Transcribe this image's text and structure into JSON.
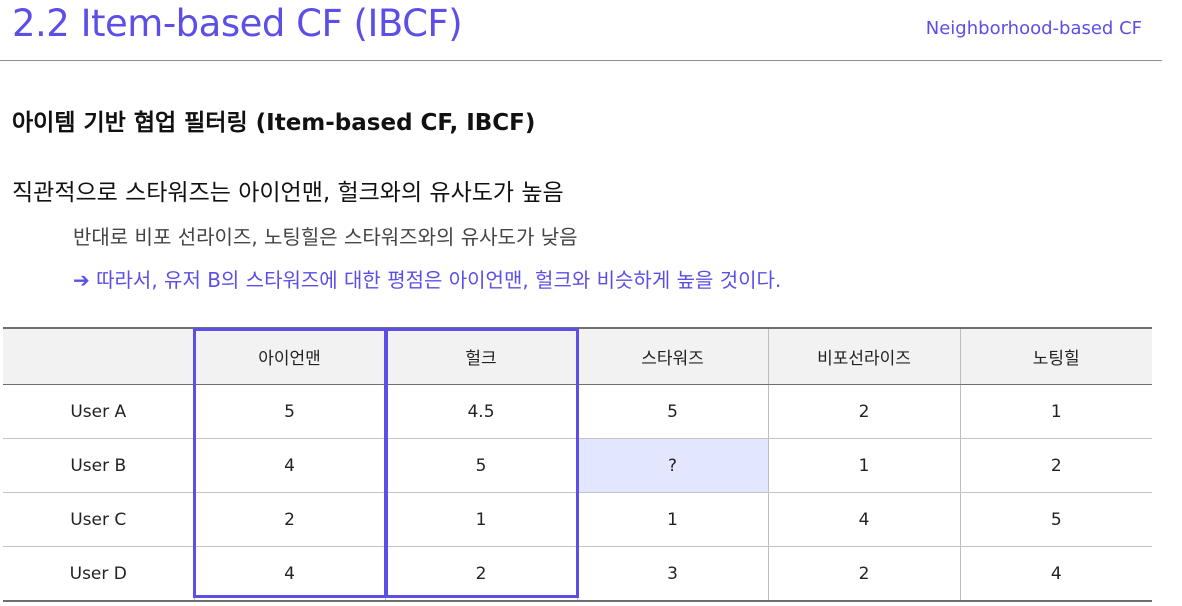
{
  "header": {
    "title": "2.2 Item-based CF (IBCF)",
    "section": "Neighborhood-based CF"
  },
  "content": {
    "subtitle": "아이템 기반 협업 필터링 (Item-based CF, IBCF)",
    "line1": "직관적으로 스타워즈는 아이언맨, 헐크와의 유사도가 높음",
    "line2": "반대로 비포 선라이즈, 노팅힐은 스타워즈와의 유사도가 낮음",
    "line3_arrow": "➔",
    "line3": "따라서, 유저 B의 스타워즈에 대한 평점은 아이언맨, 헐크와 비슷하게 높을 것이다."
  },
  "table": {
    "columns": [
      "",
      "아이언맨",
      "헐크",
      "스타워즈",
      "비포선라이즈",
      "노팅힐"
    ],
    "rows": [
      {
        "user": "User A",
        "ratings": [
          "5",
          "4.5",
          "5",
          "2",
          "1"
        ]
      },
      {
        "user": "User B",
        "ratings": [
          "4",
          "5",
          "?",
          "1",
          "2"
        ]
      },
      {
        "user": "User C",
        "ratings": [
          "2",
          "1",
          "1",
          "4",
          "5"
        ]
      },
      {
        "user": "User D",
        "ratings": [
          "4",
          "2",
          "3",
          "2",
          "4"
        ]
      }
    ],
    "highlighted_columns": [
      "아이언맨",
      "헐크"
    ],
    "unknown_cell": {
      "user": "User B",
      "item": "스타워즈"
    },
    "colors": {
      "accent": "#5b4fe8",
      "unknown_cell_bg": "#e2e6ff",
      "header_bg": "#f2f2f2"
    }
  }
}
